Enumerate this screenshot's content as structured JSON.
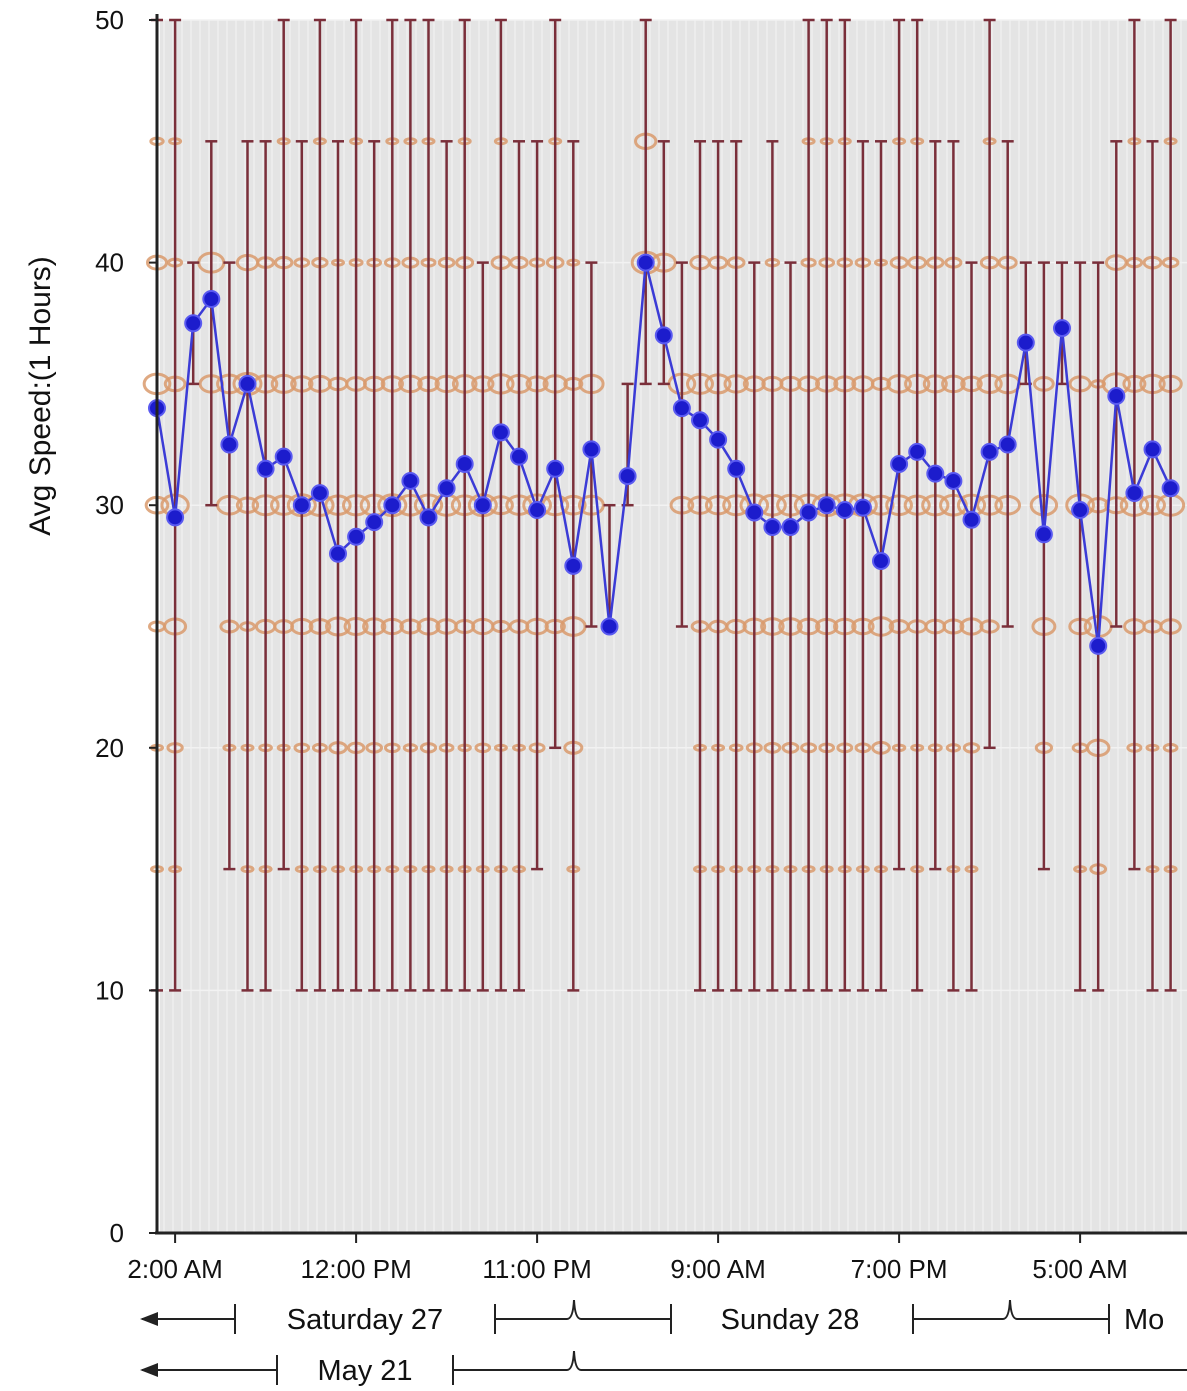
{
  "chart_data": {
    "type": "line",
    "ylabel": "Avg Speed:(1 Hours)",
    "ylim": [
      0,
      50
    ],
    "yticks": [
      0,
      10,
      20,
      30,
      40,
      50
    ],
    "grid": true,
    "x_tick_labels": [
      "2:00 AM",
      "12:00 PM",
      "11:00 PM",
      "9:00 AM",
      "7:00 PM",
      "5:00 AM"
    ],
    "day_labels": [
      "Saturday 27",
      "Sunday 28",
      "Mo"
    ],
    "week_label": "May 21",
    "colors": {
      "line": "#3b3bd6",
      "marker": "#1c1ccc",
      "range_bar": "#7a2f3a",
      "distribution": "#d99a6c",
      "plot_bg": "#e4e4e4",
      "grid_line": "#f4f4f4"
    },
    "series": [
      {
        "values": [
          34,
          29.5,
          37.5,
          38.5,
          32.5,
          35,
          31.5,
          32,
          30,
          30.5,
          28,
          28.7,
          29.3,
          30,
          31,
          29.5,
          30.7,
          31.7,
          30,
          33,
          32,
          29.8,
          31.5,
          27.5,
          32.3,
          25,
          31.2,
          40,
          37,
          34,
          33.5,
          32.7,
          31.5,
          29.7,
          29.1,
          29.1,
          29.7,
          30,
          29.8,
          29.9,
          27.7,
          31.7,
          32.2,
          31.3,
          31,
          29.4,
          32.2,
          32.5,
          36.7,
          28.8,
          37.3,
          29.8,
          24.2,
          34.5,
          30.5,
          32.3,
          30.7
        ]
      },
      {
        "range_min": [
          10,
          10,
          35,
          30,
          15,
          10,
          10,
          15,
          10,
          10,
          10,
          10,
          10,
          10,
          10,
          10,
          10,
          10,
          10,
          10,
          10,
          15,
          20,
          10,
          25,
          25,
          30,
          35,
          35,
          25,
          10,
          10,
          10,
          10,
          10,
          10,
          10,
          10,
          10,
          10,
          10,
          15,
          10,
          15,
          10,
          10,
          20,
          25,
          35,
          15,
          35,
          10,
          10,
          25,
          15,
          10,
          10
        ],
        "range_max": [
          50,
          50,
          40,
          45,
          40,
          45,
          45,
          50,
          45,
          50,
          45,
          50,
          45,
          50,
          50,
          50,
          45,
          50,
          40,
          50,
          45,
          45,
          50,
          45,
          40,
          30,
          35,
          50,
          45,
          40,
          45,
          45,
          45,
          40,
          45,
          40,
          50,
          50,
          50,
          45,
          45,
          50,
          50,
          45,
          45,
          40,
          50,
          45,
          40,
          40,
          40,
          40,
          40,
          45,
          50,
          45,
          50
        ]
      }
    ]
  }
}
